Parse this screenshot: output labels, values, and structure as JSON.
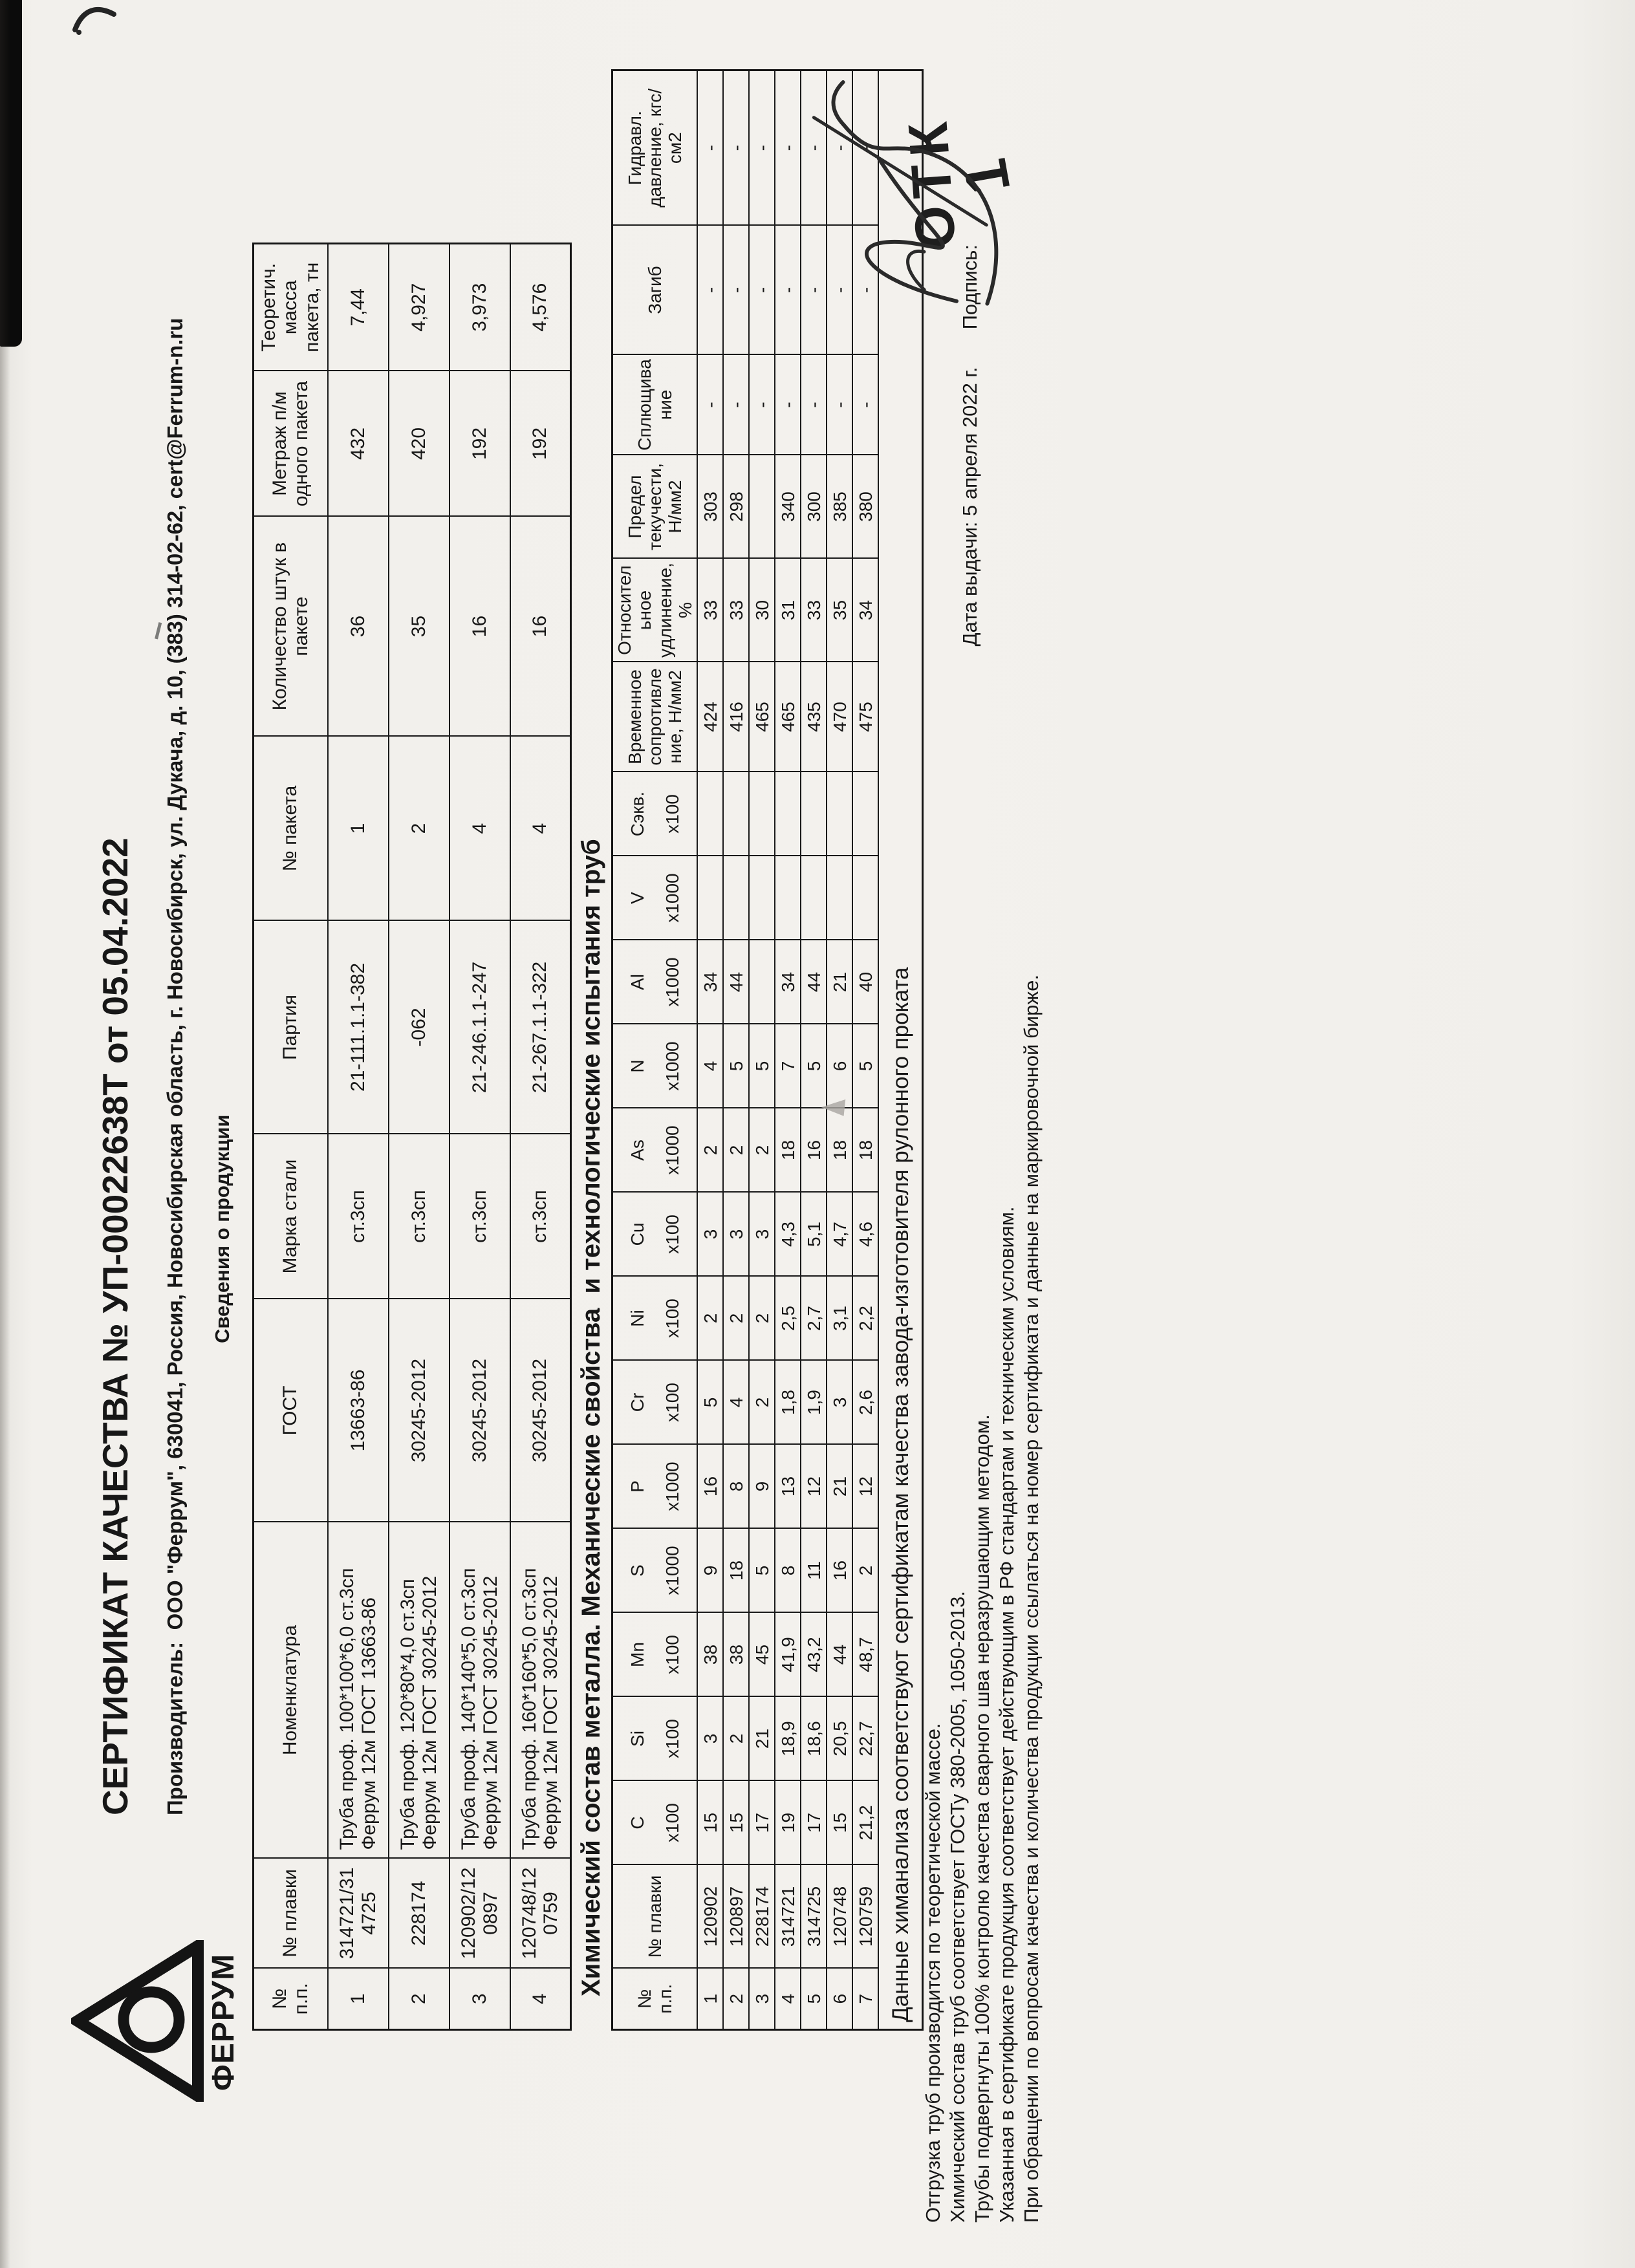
{
  "certificate": {
    "title": "СЕРТИФИКАТ КАЧЕСТВА № УП-00022638Т от 05.04.2022",
    "producer": "Производитель:  ООО \"Феррум\", 630041, Россия, Новосибирская область, г. Новосибирск, ул. Дукача, д. 10, (383) 314-02-62, cert@Ferrum-n.ru",
    "logo_text": "ФЕРРУМ",
    "date_line": "Дата выдачи: 5 апреля 2022 г.",
    "signature_label": "Подпись:",
    "stamp": {
      "text": "ОТК",
      "number": "1"
    }
  },
  "section1": {
    "heading": "Сведения о продукции",
    "headers": [
      "№ п.п.",
      "№ плавки",
      "Номенклатура",
      "ГОСТ",
      "Марка стали",
      "Партия",
      "№ пакета",
      "Количество штук в пакете",
      "Метраж п/м одного пакета",
      "Теоретич. масса пакета, тн"
    ],
    "rows": [
      [
        "1",
        "314721/314725",
        "Труба проф.  100*100*6,0 ст.3сп Феррум 12м ГОСТ 13663-86",
        "13663-86",
        "ст.3сп",
        "21-111.1.1-382",
        "1",
        "36",
        "432",
        "7,44"
      ],
      [
        "2",
        "228174",
        "Труба проф.  120*80*4,0 ст.3сп Феррум 12м ГОСТ 30245-2012",
        "30245-2012",
        "ст.3сп",
        "-062",
        "2",
        "35",
        "420",
        "4,927"
      ],
      [
        "3",
        "120902/120897",
        "Труба проф.  140*140*5,0 ст.3сп Феррум 12м ГОСТ 30245-2012",
        "30245-2012",
        "ст.3сп",
        "21-246.1.1-247",
        "4",
        "16",
        "192",
        "3,973"
      ],
      [
        "4",
        "120748/120759",
        "Труба проф.  160*160*5,0 ст.3сп Феррум 12м ГОСТ 30245-2012",
        "30245-2012",
        "ст.3сп",
        "21-267.1.1-322",
        "4",
        "16",
        "192",
        "4,576"
      ]
    ]
  },
  "section2": {
    "heading": "Химический состав металла. Механические свойства  и технологические испытания труб",
    "headers": [
      {
        "label": "№ п.п.",
        "sub": ""
      },
      {
        "label": "№ плавки",
        "sub": ""
      },
      {
        "label": "C",
        "sub": "х100"
      },
      {
        "label": "Si",
        "sub": "х100"
      },
      {
        "label": "Mn",
        "sub": "х100"
      },
      {
        "label": "S",
        "sub": "х1000"
      },
      {
        "label": "P",
        "sub": "х1000"
      },
      {
        "label": "Cr",
        "sub": "х100"
      },
      {
        "label": "Ni",
        "sub": "х100"
      },
      {
        "label": "Cu",
        "sub": "х100"
      },
      {
        "label": "As",
        "sub": "х1000"
      },
      {
        "label": "N",
        "sub": "х1000"
      },
      {
        "label": "Al",
        "sub": "х1000"
      },
      {
        "label": "V",
        "sub": "х1000"
      },
      {
        "label": "Сэкв.",
        "sub": "х100"
      },
      {
        "label": "Временное сопротивление, Н/мм2",
        "sub": ""
      },
      {
        "label": "Относительное удлинение, %",
        "sub": ""
      },
      {
        "label": "Предел текучести, Н/мм2",
        "sub": ""
      },
      {
        "label": "Сплющивание",
        "sub": ""
      },
      {
        "label": "Загиб",
        "sub": ""
      },
      {
        "label": "Гидравл. давление, кгс/см2",
        "sub": ""
      }
    ],
    "rows": [
      [
        "1",
        "120902",
        "15",
        "3",
        "38",
        "9",
        "16",
        "5",
        "2",
        "3",
        "2",
        "4",
        "34",
        "",
        "",
        "424",
        "33",
        "303",
        "-",
        "-",
        "-"
      ],
      [
        "2",
        "120897",
        "15",
        "2",
        "38",
        "18",
        "8",
        "4",
        "2",
        "3",
        "2",
        "5",
        "44",
        "",
        "",
        "416",
        "33",
        "298",
        "-",
        "-",
        "-"
      ],
      [
        "3",
        "228174",
        "17",
        "21",
        "45",
        "5",
        "9",
        "2",
        "2",
        "3",
        "2",
        "5",
        "",
        "",
        "",
        "465",
        "30",
        "",
        "-",
        "-",
        "-"
      ],
      [
        "4",
        "314721",
        "19",
        "18,9",
        "41,9",
        "8",
        "13",
        "1,8",
        "2,5",
        "4,3",
        "18",
        "7",
        "34",
        "",
        "",
        "465",
        "31",
        "340",
        "-",
        "-",
        "-"
      ],
      [
        "5",
        "314725",
        "17",
        "18,6",
        "43,2",
        "11",
        "12",
        "1,9",
        "2,7",
        "5,1",
        "16",
        "5",
        "44",
        "",
        "",
        "435",
        "33",
        "300",
        "-",
        "-",
        "-"
      ],
      [
        "6",
        "120748",
        "15",
        "20,5",
        "44",
        "16",
        "21",
        "3",
        "3,1",
        "4,7",
        "18",
        "6",
        "21",
        "",
        "",
        "470",
        "35",
        "385",
        "-",
        "-",
        "-"
      ],
      [
        "7",
        "120759",
        "21,2",
        "22,7",
        "48,7",
        "2",
        "12",
        "2,6",
        "2,2",
        "4,6",
        "18",
        "5",
        "40",
        "",
        "",
        "475",
        "34",
        "380",
        "-",
        "-",
        "-"
      ]
    ],
    "footnote": "Данные химанализа соответствуют сертификатам качества завода-изготовителя рулонного проката"
  },
  "footer_lines": [
    "Отгрузка труб производится по теоретической массе.",
    "Химический состав труб соответствует ГОСТу 380-2005, 1050-2013.",
    "Трубы подвергнуты 100% контролю качества сварного шва неразрушающим методом.",
    "Указанная в сертификате продукция соответствует действующим в РФ стандартам и техническим условиям.",
    "При обращении по вопросам качества и количества продукции ссылаться на номер сертификата и данные на маркировочной бирже."
  ]
}
